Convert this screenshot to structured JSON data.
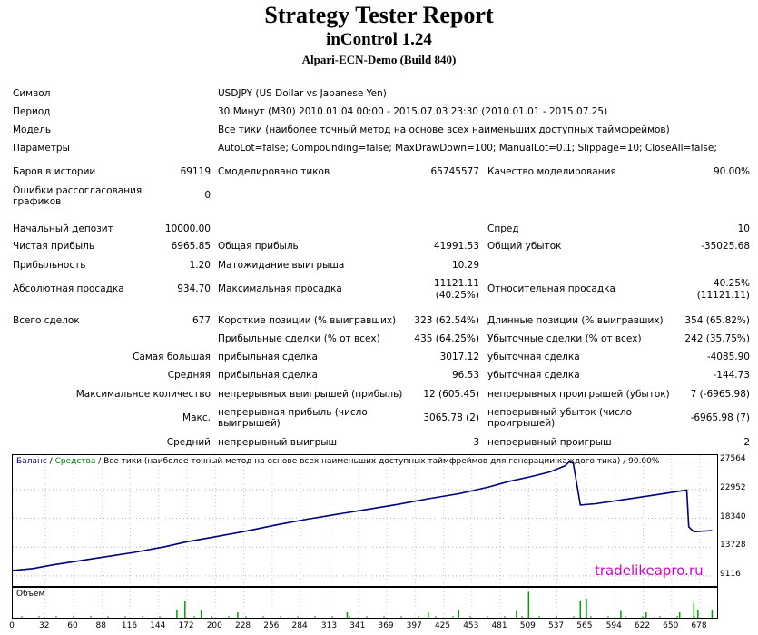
{
  "header": {
    "title": "Strategy Tester Report",
    "expert": "inControl 1.24",
    "server": "Alpari-ECN-Demo (Build 840)"
  },
  "info": {
    "symbol_label": "Символ",
    "symbol_value": "USDJPY (US Dollar vs Japanese Yen)",
    "period_label": "Период",
    "period_value": "30 Минут (M30) 2010.01.04 00:00 - 2015.07.03 23:30 (2010.01.01 - 2015.07.25)",
    "model_label": "Модель",
    "model_value": "Все тики (наиболее точный метод на основе всех наименьших доступных таймфреймов)",
    "params_label": "Параметры",
    "params_value": "AutoLot=false; Compounding=false; MaxDrawDown=100; ManualLot=0.1; Slippage=10; CloseAll=false;"
  },
  "stats": {
    "bars_label": "Баров в истории",
    "bars_value": "69119",
    "ticks_label": "Смоделировано тиков",
    "ticks_value": "65745577",
    "quality_label": "Качество моделирования",
    "quality_value": "90.00%",
    "errors_label": "Ошибки рассогласования графиков",
    "errors_value": "0",
    "deposit_label": "Начальный депозит",
    "deposit_value": "10000.00",
    "spread_label": "Спред",
    "spread_value": "10",
    "net_label": "Чистая прибыль",
    "net_value": "6965.85",
    "gross_profit_label": "Общая прибыль",
    "gross_profit_value": "41991.53",
    "gross_loss_label": "Общий убыток",
    "gross_loss_value": "-35025.68",
    "pf_label": "Прибыльность",
    "pf_value": "1.20",
    "expected_label": "Матожидание выигрыша",
    "expected_value": "10.29",
    "abs_dd_label": "Абсолютная просадка",
    "abs_dd_value": "934.70",
    "max_dd_label": "Максимальная просадка",
    "max_dd_value1": "11121.11",
    "max_dd_value2": "(40.25%)",
    "rel_dd_label": "Относительная просадка",
    "rel_dd_value1": "40.25%",
    "rel_dd_value2": "(11121.11)",
    "total_label": "Всего сделок",
    "total_value": "677",
    "short_label": "Короткие позиции (% выигравших)",
    "short_value": "323 (62.54%)",
    "long_label": "Длинные позиции (% выигравших)",
    "long_value": "354 (65.82%)",
    "profit_trades_label": "Прибыльные сделки (% от всех)",
    "profit_trades_value": "435 (64.25%)",
    "loss_trades_label": "Убыточные сделки (% от всех)",
    "loss_trades_value": "242 (35.75%)",
    "largest_label": "Самая большая",
    "largest_profit_label": "прибыльная сделка",
    "largest_profit_value": "3017.12",
    "largest_loss_label": "убыточная сделка",
    "largest_loss_value": "-4085.90",
    "avg_label": "Средняя",
    "avg_profit_label": "прибыльная сделка",
    "avg_profit_value": "96.53",
    "avg_loss_label": "убыточная сделка",
    "avg_loss_value": "-144.73",
    "maxcount_label": "Максимальное количество",
    "maxcons_wins_label": "непрерывных выигрышей (прибыль)",
    "maxcons_wins_value": "12 (605.45)",
    "maxcons_losses_label": "непрерывных проигрышей (убыток)",
    "maxcons_losses_value": "7 (-6965.98)",
    "max_label": "Макс.",
    "maxcons_profit_label": "непрерывная прибыль (число выигрышей)",
    "maxcons_profit_value": "3065.78 (2)",
    "maxcons_loss_label": "непрерывный убыток (число проигрышей)",
    "maxcons_loss_value": "-6965.98 (7)",
    "average_label": "Средний",
    "avg_cons_wins_label": "непрерывный выигрыш",
    "avg_cons_wins_value": "3",
    "avg_cons_losses_label": "непрерывный проигрыш",
    "avg_cons_losses_value": "2"
  },
  "chart_legend": {
    "balance": "Баланс",
    "sep1": " / ",
    "equity": "Средства",
    "sep2": " / ",
    "rest": "Все тики (наиболее точный метод на основе всех наименьших доступных таймфреймов для генерации каждого тика) / 90.00%"
  },
  "volume_label": "Объем",
  "watermark": "tradelikeapro.ru",
  "colors": {
    "balance": "#000080",
    "equity": "#008000",
    "volume": "#00a000",
    "watermark": "#cc00cc"
  },
  "chart_data": {
    "type": "line",
    "xlabel": "",
    "ylabel": "",
    "xlim": [
      0,
      695
    ],
    "ylim": [
      7500,
      28500
    ],
    "y_ticks": [
      27564,
      22952,
      18340,
      13728,
      9116
    ],
    "x_ticks": [
      0,
      32,
      60,
      88,
      116,
      144,
      172,
      200,
      228,
      256,
      284,
      313,
      341,
      369,
      397,
      425,
      453,
      481,
      509,
      537,
      565,
      594,
      622,
      650,
      678
    ],
    "series": [
      {
        "name": "Баланс",
        "x": [
          0,
          20,
          40,
          60,
          80,
          100,
          120,
          150,
          172,
          200,
          230,
          260,
          290,
          320,
          350,
          380,
          410,
          440,
          470,
          490,
          510,
          530,
          545,
          549,
          553,
          560,
          575,
          600,
          625,
          650,
          665,
          667,
          672,
          690
        ],
        "y": [
          10000,
          10300,
          10900,
          11400,
          11900,
          12400,
          12900,
          13800,
          14600,
          15400,
          16300,
          17300,
          18200,
          19000,
          19800,
          20600,
          21500,
          22300,
          23400,
          24300,
          25000,
          25800,
          26800,
          27400,
          27200,
          20500,
          20700,
          21300,
          21900,
          22500,
          22900,
          17000,
          16200,
          16400
        ]
      },
      {
        "name": "Средства",
        "x": [
          0,
          20,
          40,
          60,
          80,
          100,
          120,
          150,
          172,
          200,
          230,
          260,
          290,
          320,
          350,
          380,
          410,
          440,
          470,
          490,
          510,
          530,
          545,
          549,
          553,
          560,
          575,
          600,
          625,
          650,
          665,
          667,
          672,
          690
        ],
        "y": [
          10000,
          10300,
          10900,
          11400,
          11900,
          12400,
          12900,
          13800,
          14600,
          15400,
          16300,
          17300,
          18200,
          19000,
          19800,
          20600,
          21500,
          22300,
          23400,
          24300,
          25000,
          25800,
          26800,
          27400,
          27200,
          20500,
          20700,
          21300,
          21900,
          22500,
          22900,
          17000,
          16200,
          16400
        ]
      }
    ]
  }
}
